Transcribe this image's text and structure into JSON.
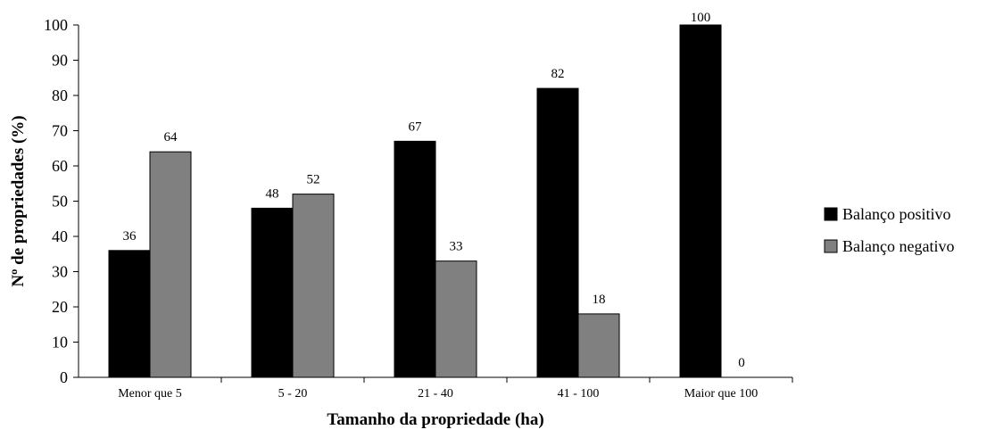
{
  "chart_data": {
    "type": "bar",
    "title": "",
    "xlabel": "Tamanho da propriedade  (ha)",
    "ylabel": "Nº de propriedades  (%)",
    "ylim": [
      0,
      100
    ],
    "yticks": [
      0,
      10,
      20,
      30,
      40,
      50,
      60,
      70,
      80,
      90,
      100
    ],
    "categories": [
      "Menor que 5",
      "5 - 20",
      "21 - 40",
      "41 - 100",
      "Maior que 100"
    ],
    "series": [
      {
        "name": "Balanço positivo",
        "color": "#000000",
        "values": [
          36,
          48,
          67,
          82,
          100
        ],
        "labels": [
          "36",
          "48",
          "67",
          "82",
          "100"
        ]
      },
      {
        "name": "Balanço negativo",
        "color": "#808080",
        "values": [
          64,
          52,
          33,
          18,
          0
        ],
        "labels": [
          "64",
          "52",
          "33",
          "18",
          "0"
        ]
      }
    ],
    "grid": false,
    "legend": "right"
  }
}
